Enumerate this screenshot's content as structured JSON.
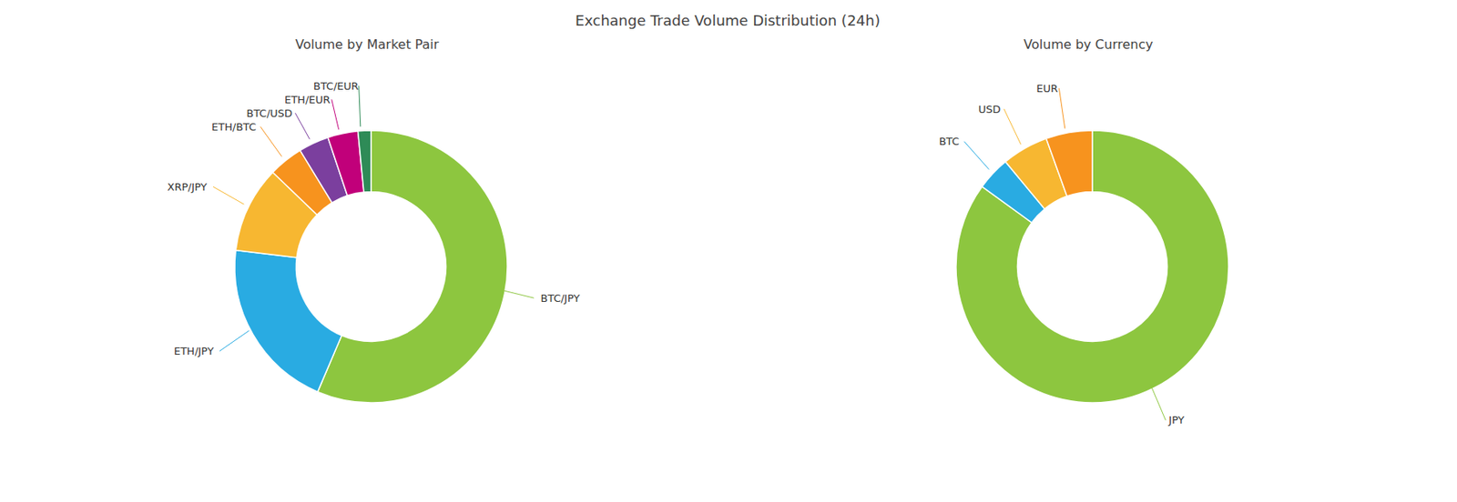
{
  "title": "Exchange Trade Volume Distribution (24h)",
  "chart_data": [
    {
      "type": "donut",
      "title": "Volume by Market Pair",
      "categories": [
        "BTC/JPY",
        "ETH/JPY",
        "XRP/JPY",
        "ETH/BTC",
        "BTC/USD",
        "ETH/EUR",
        "BTC/EUR"
      ],
      "values": [
        55,
        20,
        10,
        4,
        3.5,
        3.5,
        1.5
      ],
      "colors": [
        "#8DC63F",
        "#29ABE2",
        "#F7B731",
        "#F7931E",
        "#7B3F9E",
        "#C1007A",
        "#2E8B57"
      ]
    },
    {
      "type": "donut",
      "title": "Volume by Currency",
      "categories": [
        "JPY",
        "BTC",
        "USD",
        "EUR"
      ],
      "values": [
        85,
        4,
        5.5,
        5.5
      ],
      "colors": [
        "#8DC63F",
        "#29ABE2",
        "#F7B731",
        "#F7931E"
      ]
    }
  ]
}
